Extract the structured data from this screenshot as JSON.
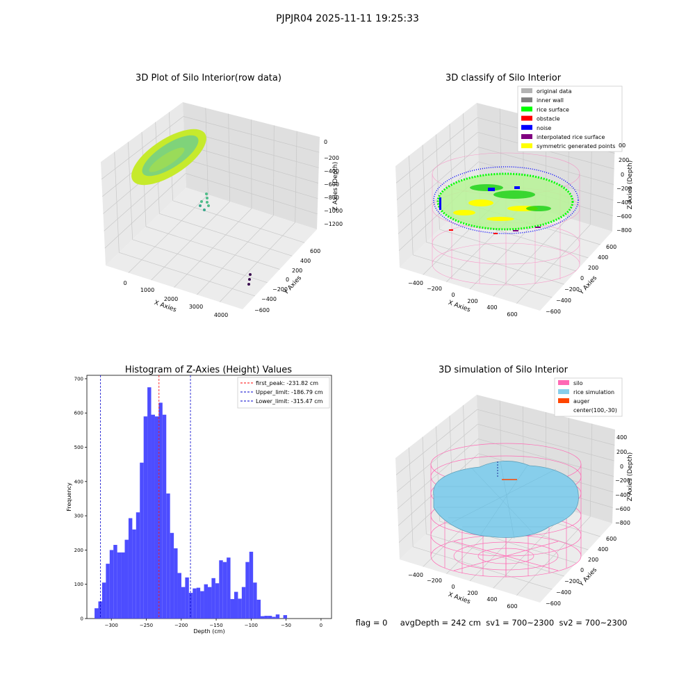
{
  "suptitle": "PJPJR04 2025-11-11 19:25:33",
  "colors": {
    "pane_left": "#e9e9e9",
    "pane_right": "#dfdfdf",
    "pane_floor": "#ececec",
    "grid": "#c8c8c8",
    "hist_bar": "#4d4dff",
    "peak_line": "#ff0000",
    "limit_line": "#0000cc",
    "silo": "#ff69b4",
    "rice_sim": "#87ceeb",
    "auger": "#ff4500",
    "original": "#b3b3b3",
    "inner_wall": "#808080",
    "rice_surface": "#00ff00",
    "obstacle": "#ff0000",
    "noise": "#0000ff",
    "interp": "#800080",
    "symmetric": "#ffff00"
  },
  "panels": {
    "raw": {
      "title": "3D Plot of Silo Interior(row data)",
      "x_axis": {
        "label": "X Axies",
        "ticks": [
          "0",
          "1000",
          "2000",
          "3000",
          "4000"
        ]
      },
      "y_axis": {
        "label": "Y Axies",
        "ticks": [
          "600",
          "400",
          "200",
          "0",
          "−200",
          "−400",
          "−600"
        ]
      },
      "z_axis": {
        "label": "Z Axies (Depth)",
        "ticks": [
          "0",
          "−200",
          "−400",
          "−600",
          "−800",
          "−1000",
          "−1200"
        ]
      }
    },
    "classify": {
      "title": "3D classify of Silo Interior",
      "legend": [
        {
          "label": "original data",
          "color": "#b3b3b3"
        },
        {
          "label": "inner wall",
          "color": "#808080"
        },
        {
          "label": "rice surface",
          "color": "#00ff00"
        },
        {
          "label": "obstacle",
          "color": "#ff0000"
        },
        {
          "label": "noise",
          "color": "#0000ff"
        },
        {
          "label": "interpolated rice surface",
          "color": "#800080"
        },
        {
          "label": "symmetric generated points",
          "color": "#ffff00"
        }
      ],
      "x_axis": {
        "label": "X Axies",
        "ticks": [
          "−400",
          "−200",
          "0",
          "200",
          "400",
          "600"
        ]
      },
      "y_axis": {
        "label": "Y Axies",
        "ticks": [
          "600",
          "400",
          "200",
          "0",
          "−200",
          "−400",
          "−600"
        ]
      },
      "z_axis": {
        "label": "Z Axies (Depth)",
        "ticks": [
          "400",
          "200",
          "0",
          "−200",
          "−400",
          "−600",
          "−800"
        ],
        "top_tick_partial": "00"
      }
    },
    "simulation": {
      "title": "3D simulation of Silo Interior",
      "legend": [
        {
          "label": "silo",
          "color": "#ff69b4"
        },
        {
          "label": "rice simulation",
          "color": "#87ceeb"
        },
        {
          "label": "auger",
          "color": "#ff4500"
        },
        {
          "label": "center(100,-30)",
          "color": ""
        }
      ],
      "x_axis": {
        "label": "X Axies",
        "ticks": [
          "−400",
          "−200",
          "0",
          "200",
          "400",
          "600"
        ]
      },
      "y_axis": {
        "label": "Y Axies",
        "ticks": [
          "600",
          "400",
          "200",
          "0",
          "−200",
          "−400",
          "−600"
        ]
      },
      "z_axis": {
        "label": "Z Axies (Depth)",
        "ticks": [
          "400",
          "200",
          "0",
          "−200",
          "−400",
          "−600",
          "−800"
        ]
      }
    }
  },
  "status_line": "flag = 0     avgDepth = 242 cm  sv1 = 700~2300  sv2 = 700~2300",
  "chart_data": [
    {
      "type": "scatter",
      "title": "3D Plot of Silo Interior(row data)",
      "xlabel": "X Axies",
      "ylabel": "Y Axies",
      "zlabel": "Z Axies (Depth)",
      "xlim": [
        -500,
        4400
      ],
      "ylim": [
        -650,
        700
      ],
      "zlim": [
        -1300,
        50
      ],
      "description_series": [
        {
          "name": "",
          "x": [
            100,
            300,
            500,
            700
          ],
          "y": [
            0,
            200,
            -200,
            0
          ],
          "z": [
            -200,
            -250,
            -220,
            -240
          ]
        }
      ]
    },
    {
      "type": "scatter",
      "title": "3D classify of Silo Interior",
      "xlabel": "X Axies",
      "ylabel": "Y Axies",
      "zlabel": "Z Axies (Depth)",
      "xlim": [
        -500,
        700
      ],
      "ylim": [
        -650,
        650
      ],
      "zlim": [
        -900,
        400
      ],
      "legend_position": "top-right"
    },
    {
      "type": "bar",
      "title": "Histogram of Z-Axies (Height) Values",
      "xlabel": "Depth (cm)",
      "ylabel": "Frequency",
      "xlim": [
        -335,
        15
      ],
      "ylim": [
        0,
        710
      ],
      "xticks": [
        -300,
        -250,
        -200,
        -150,
        -100,
        -50,
        0
      ],
      "yticks": [
        0,
        100,
        200,
        300,
        400,
        500,
        600,
        700
      ],
      "bin_start": -324,
      "bin_width": 5.4,
      "values": [
        30,
        50,
        105,
        160,
        200,
        215,
        193,
        193,
        230,
        293,
        260,
        310,
        455,
        590,
        675,
        595,
        590,
        630,
        595,
        365,
        250,
        205,
        133,
        92,
        120,
        75,
        88,
        90,
        80,
        100,
        92,
        118,
        103,
        170,
        165,
        178,
        57,
        78,
        58,
        92,
        165,
        195,
        105,
        55,
        7,
        8,
        8,
        5,
        12,
        0,
        10
      ],
      "lines": [
        {
          "name": "first_peak: -231.82 cm",
          "x": -231.82,
          "color": "#ff0000"
        },
        {
          "name": "Upper_limit: -186.79 cm",
          "x": -186.79,
          "color": "#0000cc"
        },
        {
          "name": "Lower_limit: -315.47 cm",
          "x": -315.47,
          "color": "#0000cc"
        }
      ],
      "legend_position": "top-right"
    },
    {
      "type": "scatter",
      "title": "3D simulation of Silo Interior",
      "xlabel": "X Axies",
      "ylabel": "Y Axies",
      "zlabel": "Z Axies (Depth)",
      "xlim": [
        -500,
        700
      ],
      "ylim": [
        -650,
        650
      ],
      "zlim": [
        -900,
        450
      ],
      "legend_position": "top-right"
    }
  ]
}
